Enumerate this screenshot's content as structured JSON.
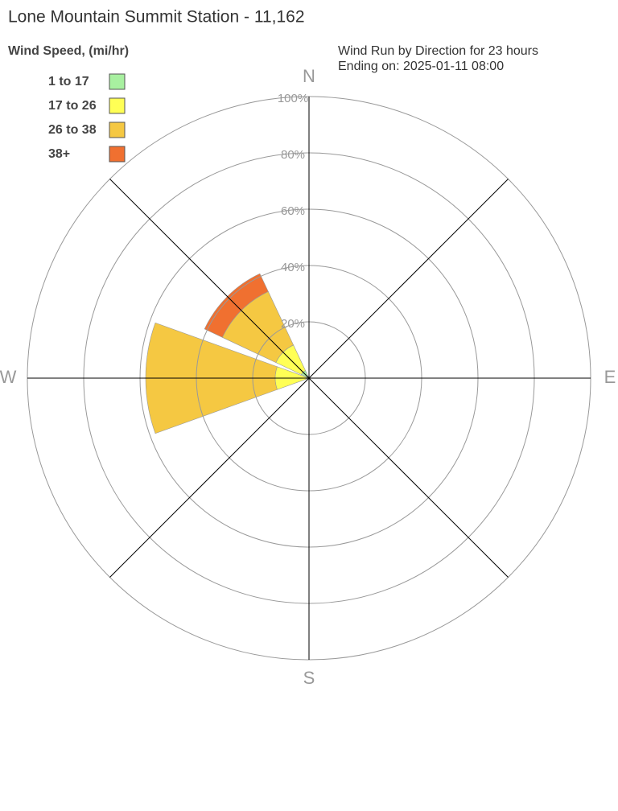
{
  "chart_data": {
    "type": "windrose",
    "title": "Lone Mountain Summit Station - 11,162",
    "legend_title": "Wind Speed, (mi/hr)",
    "subtitle": [
      "Wind Run by Direction for 23 hours",
      "Ending on: 2025-01-11 08:00"
    ],
    "categories": [
      "N",
      null,
      "E",
      null,
      "S",
      null,
      "W",
      null
    ],
    "series": [
      {
        "name": "1 to 17",
        "color": "#a8f0a0",
        "values": [
          0,
          0,
          0,
          0,
          0,
          0,
          1,
          3
        ]
      },
      {
        "name": "17 to 26",
        "color": "#ffff55",
        "values": [
          0,
          0,
          0,
          0,
          0,
          0,
          11,
          10
        ]
      },
      {
        "name": "26 to 38",
        "color": "#f5c842",
        "values": [
          0,
          0,
          0,
          0,
          0,
          0,
          46,
          21
        ]
      },
      {
        "name": "38+",
        "color": "#f07030",
        "values": [
          0,
          0,
          0,
          0,
          0,
          0,
          0,
          7
        ]
      }
    ],
    "rlim": [
      0,
      100
    ],
    "rticks": [
      {
        "value": 20,
        "label": "20%"
      },
      {
        "value": 40,
        "label": "40%"
      },
      {
        "value": 60,
        "label": "60%"
      },
      {
        "value": 80,
        "label": "80%"
      },
      {
        "value": 100,
        "label": "100%"
      }
    ]
  }
}
